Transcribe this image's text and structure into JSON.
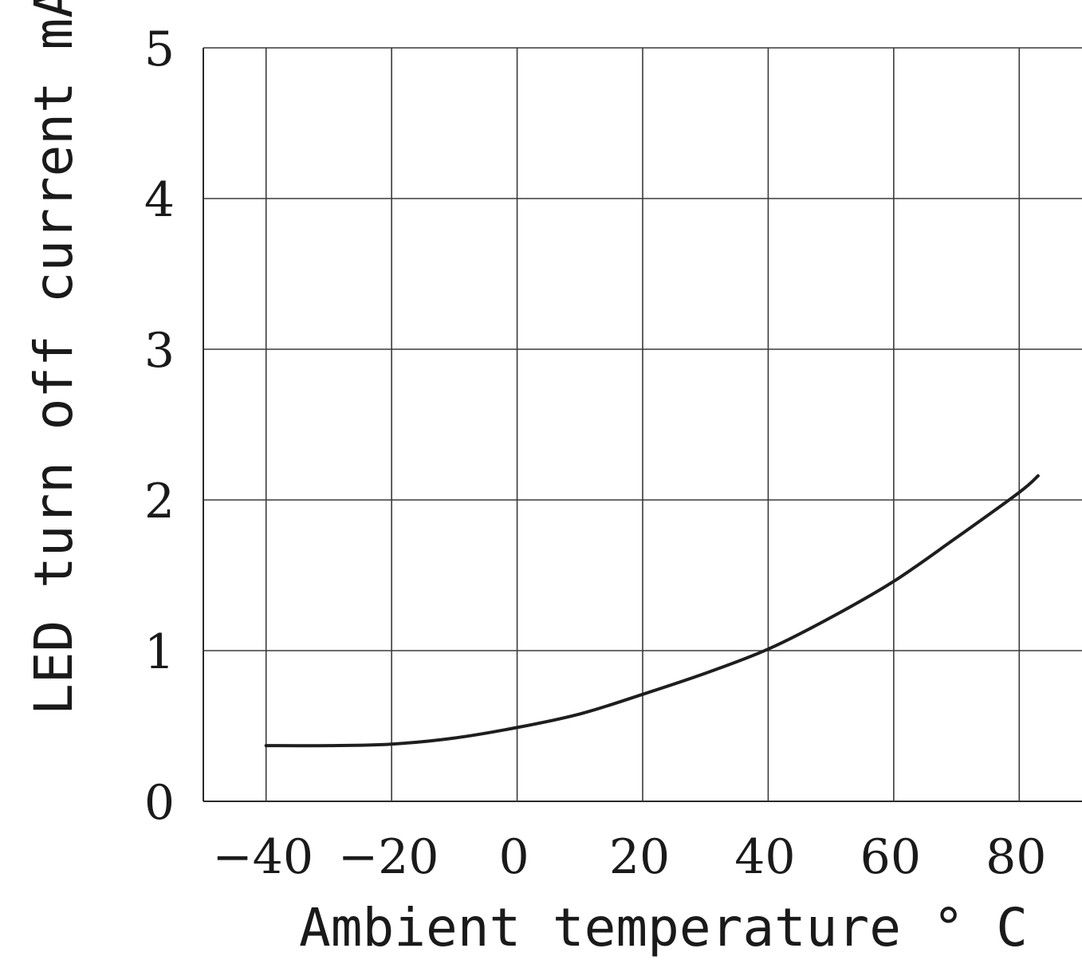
{
  "chart_data": {
    "type": "line",
    "xlabel": "Ambient temperature ° C",
    "ylabel": "LED turn off current mA",
    "xlim": [
      -50,
      90
    ],
    "ylim": [
      0,
      5
    ],
    "x_ticks": [
      -40,
      -20,
      0,
      20,
      40,
      60,
      80
    ],
    "y_ticks": [
      0,
      1,
      2,
      3,
      4,
      5
    ],
    "x_tick_labels": [
      "−40",
      "−20",
      "0",
      "20",
      "40",
      "60",
      "80"
    ],
    "y_tick_labels": [
      "0",
      "1",
      "2",
      "3",
      "4",
      "5"
    ],
    "grid": true,
    "series": [
      {
        "x": [
          -40,
          -30,
          -20,
          -10,
          0,
          10,
          20,
          30,
          40,
          50,
          60,
          70,
          80,
          83
        ],
        "y": [
          0.37,
          0.37,
          0.38,
          0.42,
          0.49,
          0.58,
          0.71,
          0.85,
          1.01,
          1.22,
          1.46,
          1.75,
          2.05,
          2.16
        ],
        "color": "#1e1e1e"
      }
    ]
  }
}
